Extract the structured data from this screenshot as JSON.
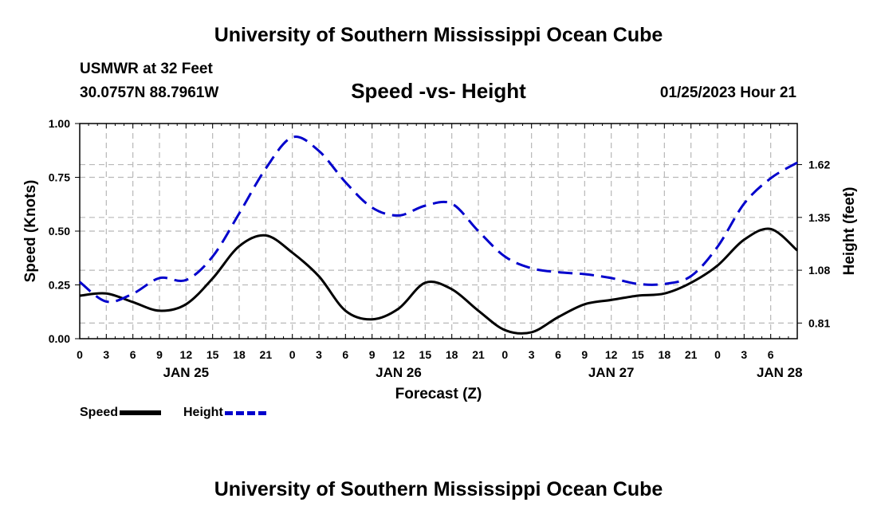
{
  "page": {
    "title_top": "University of Southern Mississippi Ocean Cube",
    "title_bottom": "University of Southern Mississippi Ocean Cube",
    "station": "USMWR at 32 Feet",
    "coords": "30.0757N  88.7961W",
    "datestamp": "01/25/2023 Hour 21"
  },
  "legend": {
    "speed_label": "Speed",
    "height_label": "Height"
  },
  "chart_data": {
    "type": "line",
    "title": "Speed -vs- Height",
    "xlabel": "Forecast (Z)",
    "ylabel": "Speed (Knots)",
    "y2label": "Height (feet)",
    "x_range_hours": [
      0,
      81
    ],
    "ylim": [
      0,
      1
    ],
    "y2lim": [
      0.73,
      1.83
    ],
    "x_tick_labels": [
      "0",
      "3",
      "6",
      "9",
      "12",
      "15",
      "18",
      "21",
      "0",
      "3",
      "6",
      "9",
      "12",
      "15",
      "18",
      "21",
      "0",
      "3",
      "6",
      "9",
      "12",
      "15",
      "18",
      "21",
      "0",
      "3",
      "6"
    ],
    "day_labels": [
      {
        "label": "JAN 25",
        "hour": 12
      },
      {
        "label": "JAN 26",
        "hour": 36
      },
      {
        "label": "JAN 27",
        "hour": 60
      },
      {
        "label": "JAN 28",
        "hour": 79
      }
    ],
    "y_ticks": [
      0.0,
      0.25,
      0.5,
      0.75,
      1.0
    ],
    "y_tick_labels": [
      "0.00",
      "0.25",
      "0.50",
      "0.75",
      "1.00"
    ],
    "y2_ticks": [
      0.81,
      1.08,
      1.35,
      1.62
    ],
    "y2_tick_labels": [
      "0.81",
      "1.08",
      "1.35",
      "1.62"
    ],
    "series": [
      {
        "name": "Speed",
        "axis": "left",
        "style": "solid",
        "color": "#000000",
        "x": [
          0,
          3,
          6,
          9,
          12,
          15,
          18,
          21,
          24,
          27,
          30,
          33,
          36,
          39,
          42,
          45,
          48,
          51,
          54,
          57,
          60,
          63,
          66,
          69,
          72,
          75,
          78,
          81
        ],
        "values": [
          0.2,
          0.21,
          0.17,
          0.13,
          0.16,
          0.28,
          0.43,
          0.48,
          0.4,
          0.29,
          0.13,
          0.09,
          0.14,
          0.26,
          0.23,
          0.13,
          0.04,
          0.03,
          0.1,
          0.16,
          0.18,
          0.2,
          0.21,
          0.26,
          0.34,
          0.46,
          0.51,
          0.41
        ]
      },
      {
        "name": "Height",
        "axis": "right",
        "style": "dashed",
        "color": "#0000cc",
        "x": [
          0,
          3,
          6,
          9,
          12,
          15,
          18,
          21,
          24,
          27,
          30,
          33,
          36,
          39,
          42,
          45,
          48,
          51,
          54,
          57,
          60,
          63,
          66,
          69,
          72,
          75,
          78,
          81
        ],
        "values": [
          1.02,
          0.92,
          0.96,
          1.04,
          1.03,
          1.15,
          1.37,
          1.6,
          1.76,
          1.69,
          1.53,
          1.4,
          1.36,
          1.41,
          1.42,
          1.28,
          1.15,
          1.09,
          1.07,
          1.06,
          1.04,
          1.01,
          1.01,
          1.05,
          1.2,
          1.42,
          1.55,
          1.63
        ]
      }
    ]
  }
}
